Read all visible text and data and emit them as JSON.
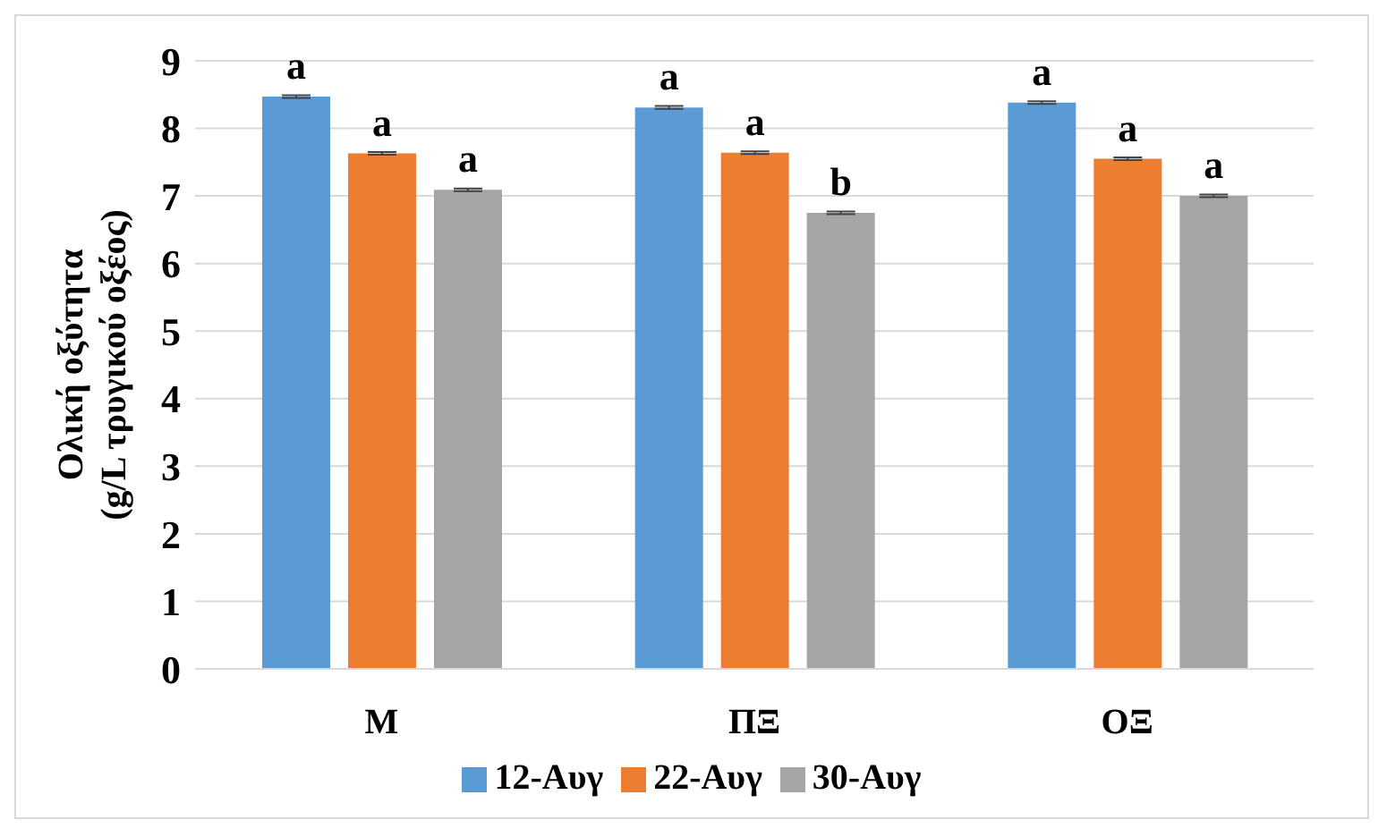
{
  "chart_data": {
    "type": "bar",
    "categories": [
      "M",
      "ΠΞ",
      "ΟΞ"
    ],
    "ylabel": "Ολική οξύτητα\n(g/L τρυγικού οξέος)",
    "ylim": [
      0,
      9
    ],
    "yticks": [
      0,
      1,
      2,
      3,
      4,
      5,
      6,
      7,
      8,
      9
    ],
    "grid": "y",
    "legend": "bottom",
    "series": [
      {
        "name": "12-Αυγ",
        "color": "#5b9bd5",
        "values": [
          8.47,
          8.31,
          8.38
        ],
        "errors": [
          0.02,
          0.02,
          0.02
        ],
        "value_labels": [
          "a",
          "a",
          "a"
        ]
      },
      {
        "name": "22-Αυγ",
        "color": "#ed7d31",
        "values": [
          7.63,
          7.64,
          7.55
        ],
        "errors": [
          0.02,
          0.02,
          0.02
        ],
        "value_labels": [
          "a",
          "a",
          "a"
        ]
      },
      {
        "name": "30-Αυγ",
        "color": "#a5a5a5",
        "values": [
          7.09,
          6.75,
          7.0
        ],
        "errors": [
          0.02,
          0.02,
          0.02
        ],
        "value_labels": [
          "a",
          "b",
          "a"
        ]
      }
    ]
  }
}
